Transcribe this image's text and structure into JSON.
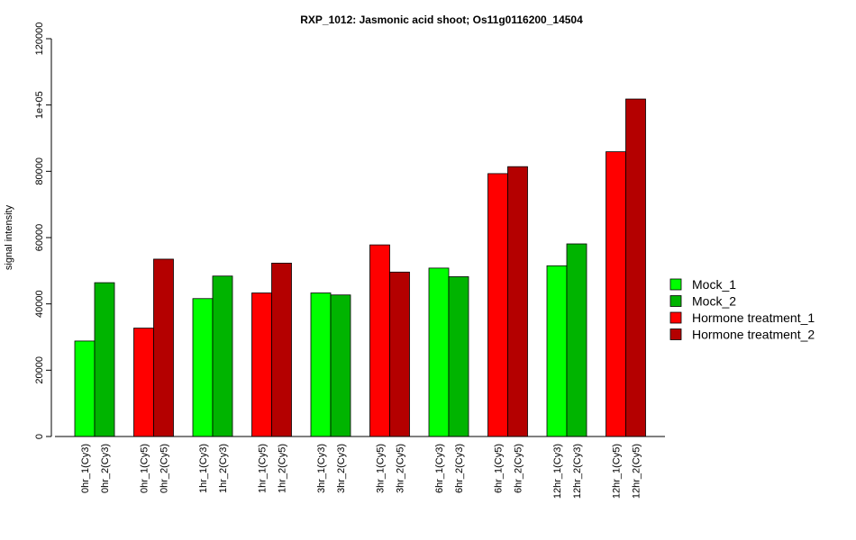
{
  "chart_data": {
    "type": "bar",
    "title": "RXP_1012: Jasmonic acid shoot; Os11g0116200_14504",
    "xlabel": "",
    "ylabel": "signal intensity",
    "ylim": [
      0,
      120000
    ],
    "yticks": [
      0,
      20000,
      40000,
      60000,
      80000,
      100000,
      120000
    ],
    "ytick_labels": [
      "0",
      "20000",
      "40000",
      "60000",
      "80000",
      "1e+05",
      "120000"
    ],
    "grid": false,
    "legend_position": "right",
    "legend": [
      {
        "label": "Mock_1",
        "color": "#00ff00"
      },
      {
        "label": "Mock_2",
        "color": "#00b400"
      },
      {
        "label": "Hormone treatment_1",
        "color": "#ff0000"
      },
      {
        "label": "Hormone treatment_2",
        "color": "#b40000"
      }
    ],
    "groups": [
      {
        "bars": [
          {
            "label": "0hr_1(Cy3)",
            "value": 28800,
            "color": "#00ff00"
          },
          {
            "label": "0hr_2(Cy3)",
            "value": 46400,
            "color": "#00b400"
          }
        ]
      },
      {
        "bars": [
          {
            "label": "0hr_1(Cy5)",
            "value": 32700,
            "color": "#ff0000"
          },
          {
            "label": "0hr_2(Cy5)",
            "value": 53500,
            "color": "#b40000"
          }
        ]
      },
      {
        "bars": [
          {
            "label": "1hr_1(Cy3)",
            "value": 41600,
            "color": "#00ff00"
          },
          {
            "label": "1hr_2(Cy3)",
            "value": 48400,
            "color": "#00b400"
          }
        ]
      },
      {
        "bars": [
          {
            "label": "1hr_1(Cy5)",
            "value": 43300,
            "color": "#ff0000"
          },
          {
            "label": "1hr_2(Cy5)",
            "value": 52300,
            "color": "#b40000"
          }
        ]
      },
      {
        "bars": [
          {
            "label": "3hr_1(Cy3)",
            "value": 43300,
            "color": "#00ff00"
          },
          {
            "label": "3hr_2(Cy3)",
            "value": 42700,
            "color": "#00b400"
          }
        ]
      },
      {
        "bars": [
          {
            "label": "3hr_1(Cy5)",
            "value": 57800,
            "color": "#ff0000"
          },
          {
            "label": "3hr_2(Cy5)",
            "value": 49600,
            "color": "#b40000"
          }
        ]
      },
      {
        "bars": [
          {
            "label": "6hr_1(Cy3)",
            "value": 50800,
            "color": "#00ff00"
          },
          {
            "label": "6hr_2(Cy3)",
            "value": 48200,
            "color": "#00b400"
          }
        ]
      },
      {
        "bars": [
          {
            "label": "6hr_1(Cy5)",
            "value": 79300,
            "color": "#ff0000"
          },
          {
            "label": "6hr_2(Cy5)",
            "value": 81400,
            "color": "#b40000"
          }
        ]
      },
      {
        "bars": [
          {
            "label": "12hr_1(Cy3)",
            "value": 51500,
            "color": "#00ff00"
          },
          {
            "label": "12hr_2(Cy3)",
            "value": 58100,
            "color": "#00b400"
          }
        ]
      },
      {
        "bars": [
          {
            "label": "12hr_1(Cy5)",
            "value": 85900,
            "color": "#ff0000"
          },
          {
            "label": "12hr_2(Cy5)",
            "value": 101800,
            "color": "#b40000"
          }
        ]
      }
    ]
  }
}
